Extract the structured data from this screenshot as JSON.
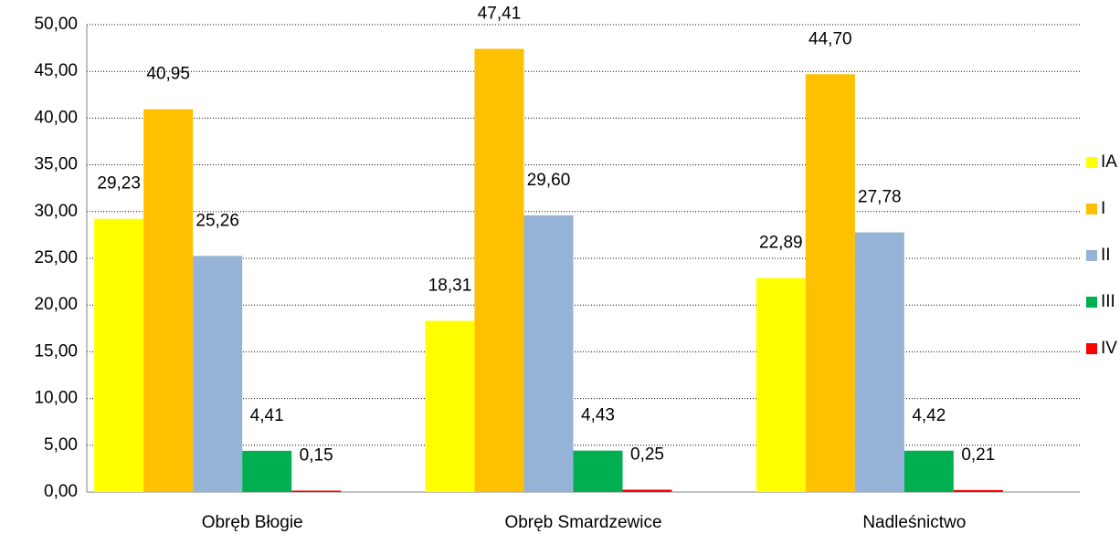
{
  "chart_data": {
    "type": "bar",
    "categories": [
      "Obręb Błogie",
      "Obręb Smardzewice",
      "Nadleśnictwo"
    ],
    "series": [
      {
        "name": "IA",
        "color": "#ffff00",
        "values": [
          29.23,
          18.31,
          22.89
        ],
        "value_labels": [
          "29,23",
          "18,31",
          "22,89"
        ]
      },
      {
        "name": "I",
        "color": "#ffc000",
        "values": [
          40.95,
          47.41,
          44.7
        ],
        "value_labels": [
          "40,95",
          "47,41",
          "44,70"
        ]
      },
      {
        "name": "II",
        "color": "#95b3d7",
        "values": [
          25.26,
          29.6,
          27.78
        ],
        "value_labels": [
          "25,26",
          "29,60",
          "27,78"
        ]
      },
      {
        "name": "III",
        "color": "#00b050",
        "values": [
          4.41,
          4.43,
          4.42
        ],
        "value_labels": [
          "4,41",
          "4,43",
          "4,42"
        ]
      },
      {
        "name": "IV",
        "color": "#ff0000",
        "values": [
          0.15,
          0.25,
          0.21
        ],
        "value_labels": [
          "0,15",
          "0,25",
          "0,21"
        ]
      }
    ],
    "ylim": [
      0,
      50
    ],
    "yticks": [
      {
        "value": 0,
        "label": "0,00"
      },
      {
        "value": 5,
        "label": "5,00"
      },
      {
        "value": 10,
        "label": "10,00"
      },
      {
        "value": 15,
        "label": "15,00"
      },
      {
        "value": 20,
        "label": "20,00"
      },
      {
        "value": 25,
        "label": "25,00"
      },
      {
        "value": 30,
        "label": "30,00"
      },
      {
        "value": 35,
        "label": "35,00"
      },
      {
        "value": 40,
        "label": "40,00"
      },
      {
        "value": 45,
        "label": "45,00"
      },
      {
        "value": 50,
        "label": "50,00"
      }
    ],
    "grid": true,
    "legend": "right"
  }
}
